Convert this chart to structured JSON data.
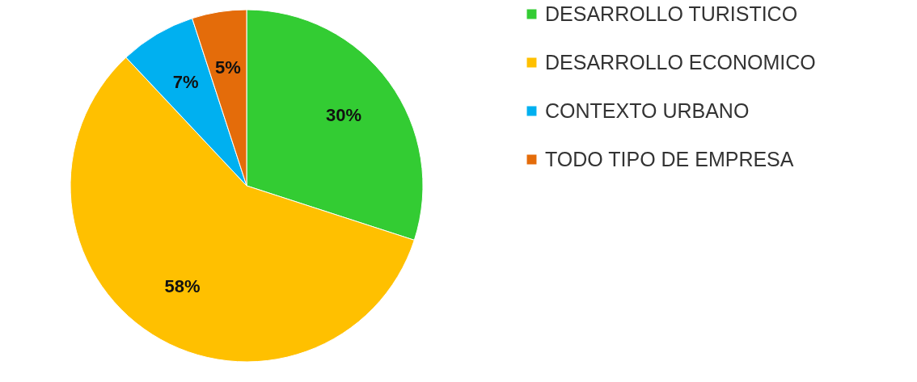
{
  "chart_data": {
    "type": "pie",
    "categories": [
      "DESARROLLO TURISTICO",
      "DESARROLLO ECONOMICO",
      "CONTEXTO URBANO",
      "TODO TIPO DE EMPRESA"
    ],
    "values": [
      30,
      58,
      7,
      5
    ],
    "colors": [
      "#33cc33",
      "#ffc000",
      "#00b0f0",
      "#e46c0a"
    ],
    "value_labels": [
      "30%",
      "58%",
      "7%",
      "5%"
    ],
    "legend": "right"
  }
}
